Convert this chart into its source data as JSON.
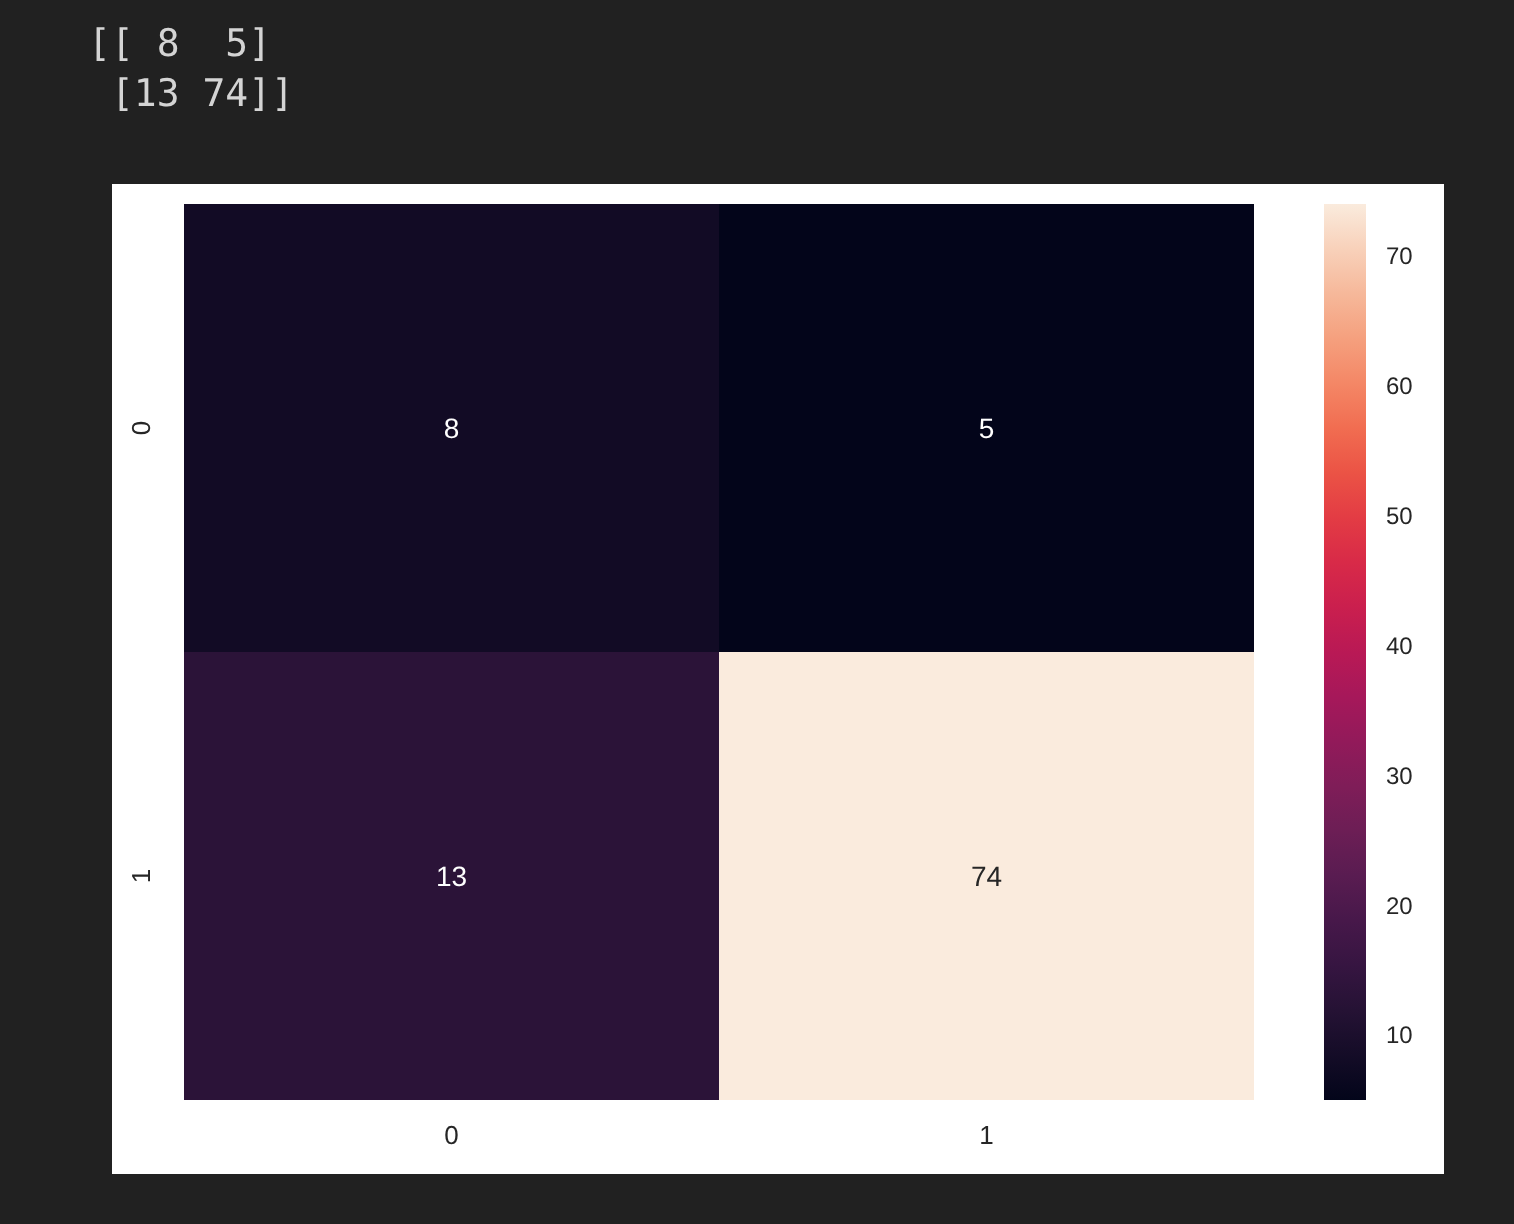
{
  "chart_data": {
    "type": "heatmap",
    "annotations": [
      "[[ 8  5]",
      " [13 74]]"
    ],
    "categories": [
      "0",
      "1"
    ],
    "y_categories": [
      "0",
      "1"
    ],
    "cells": [
      [
        8,
        5
      ],
      [
        13,
        74
      ]
    ],
    "data_labels": true,
    "clim": [
      5,
      74
    ],
    "cticks": [
      10,
      20,
      30,
      40,
      50,
      60,
      70
    ]
  }
}
